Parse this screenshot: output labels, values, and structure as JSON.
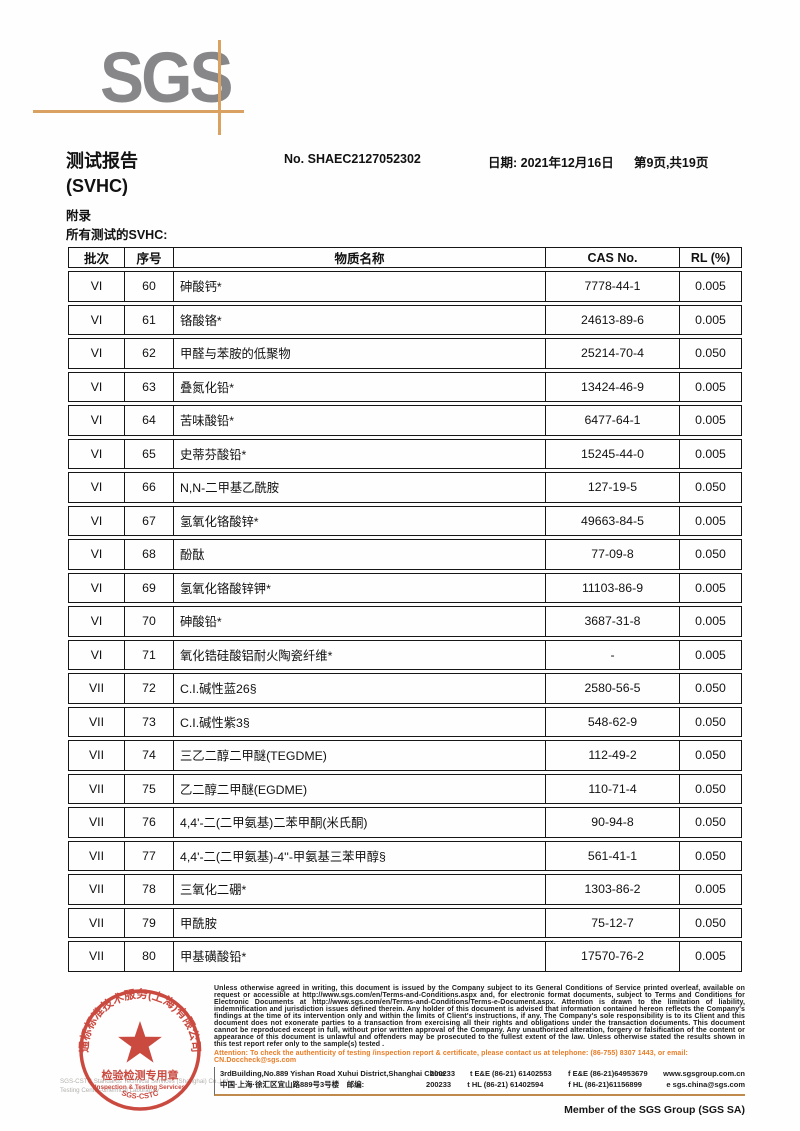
{
  "logo": {
    "text": "SGS"
  },
  "header": {
    "title_line1": "测试报告",
    "title_line2": "(SVHC)",
    "report_no": "No. SHAEC2127052302",
    "date": "日期: 2021年12月16日",
    "pages": "第9页,共19页",
    "appendix": "附录",
    "subtitle": "所有测试的SVHC:"
  },
  "table": {
    "headers": [
      "批次",
      "序号",
      "物质名称",
      "CAS No.",
      "RL (%)"
    ],
    "rows": [
      {
        "batch": "VI",
        "no": "60",
        "name": "砷酸钙*",
        "cas": "7778-44-1",
        "rl": "0.005"
      },
      {
        "batch": "VI",
        "no": "61",
        "name": "铬酸铬*",
        "cas": "24613-89-6",
        "rl": "0.005"
      },
      {
        "batch": "VI",
        "no": "62",
        "name": "甲醛与苯胺的低聚物",
        "cas": "25214-70-4",
        "rl": "0.050"
      },
      {
        "batch": "VI",
        "no": "63",
        "name": "叠氮化铅*",
        "cas": "13424-46-9",
        "rl": "0.005"
      },
      {
        "batch": "VI",
        "no": "64",
        "name": "苦味酸铅*",
        "cas": "6477-64-1",
        "rl": "0.005"
      },
      {
        "batch": "VI",
        "no": "65",
        "name": "史蒂芬酸铅*",
        "cas": "15245-44-0",
        "rl": "0.005"
      },
      {
        "batch": "VI",
        "no": "66",
        "name": "N,N-二甲基乙酰胺",
        "cas": "127-19-5",
        "rl": "0.050"
      },
      {
        "batch": "VI",
        "no": "67",
        "name": "氢氧化铬酸锌*",
        "cas": "49663-84-5",
        "rl": "0.005"
      },
      {
        "batch": "VI",
        "no": "68",
        "name": "酚酞",
        "cas": "77-09-8",
        "rl": "0.050"
      },
      {
        "batch": "VI",
        "no": "69",
        "name": "氢氧化铬酸锌钾*",
        "cas": "11103-86-9",
        "rl": "0.005"
      },
      {
        "batch": "VI",
        "no": "70",
        "name": "砷酸铅*",
        "cas": "3687-31-8",
        "rl": "0.005"
      },
      {
        "batch": "VI",
        "no": "71",
        "name": "氧化锆硅酸铝耐火陶瓷纤维*",
        "cas": "-",
        "rl": "0.005"
      },
      {
        "batch": "VII",
        "no": "72",
        "name": "C.I.碱性蓝26§",
        "cas": "2580-56-5",
        "rl": "0.050"
      },
      {
        "batch": "VII",
        "no": "73",
        "name": "C.I.碱性紫3§",
        "cas": "548-62-9",
        "rl": "0.050"
      },
      {
        "batch": "VII",
        "no": "74",
        "name": "三乙二醇二甲醚(TEGDME)",
        "cas": "112-49-2",
        "rl": "0.050"
      },
      {
        "batch": "VII",
        "no": "75",
        "name": "乙二醇二甲醚(EGDME)",
        "cas": "110-71-4",
        "rl": "0.050"
      },
      {
        "batch": "VII",
        "no": "76",
        "name": "4,4'-二(二甲氨基)二苯甲酮(米氏酮)",
        "cas": "90-94-8",
        "rl": "0.050"
      },
      {
        "batch": "VII",
        "no": "77",
        "name": "4,4'-二(二甲氨基)-4''-甲氨基三苯甲醇§",
        "cas": "561-41-1",
        "rl": "0.050"
      },
      {
        "batch": "VII",
        "no": "78",
        "name": "三氧化二硼*",
        "cas": "1303-86-2",
        "rl": "0.005"
      },
      {
        "batch": "VII",
        "no": "79",
        "name": "甲酰胺",
        "cas": "75-12-7",
        "rl": "0.050"
      },
      {
        "batch": "VII",
        "no": "80",
        "name": "甲基磺酸铅*",
        "cas": "17570-76-2",
        "rl": "0.005"
      }
    ]
  },
  "stamp": {
    "arc_top": "通标标准技术服务(上海)有限公司",
    "center_line1": "检验检测专用章",
    "center_line2": "Inspection & Testing Services",
    "arc_bottom": "SGS-CSTC"
  },
  "footer": {
    "company_gray_line1": "SGS-CSTC Standards Technical Services (Shanghai) Co.,Ltd.",
    "company_gray_line2": "Testing Center-Chemical Laboratory",
    "legal_text": "Unless otherwise agreed in writing, this document is issued by the Company subject to its General Conditions of Service printed overleaf, available on request or accessible at http://www.sgs.com/en/Terms-and-Conditions.aspx and, for electronic format documents, subject to Terms and Conditions for Electronic Documents at http://www.sgs.com/en/Terms-and-Conditions/Terms-e-Document.aspx. Attention is drawn to the limitation of liability, indemnification and jurisdiction issues defined therein. Any holder of this document is advised that information contained hereon reflects the Company's findings at the time of its intervention only and within the limits of Client's instructions, if any. The Company's sole responsibility is to its Client and this document does not exonerate parties to a transaction from exercising all their rights and obligations under the transaction documents. This document cannot be reproduced except in full, without prior written approval of the Company. Any unauthorized alteration, forgery or falsification of the content or appearance of this document is unlawful and offenders may be prosecuted to the fullest extent of the law. Unless otherwise stated the results shown in this test report refer only to the sample(s) tested .",
    "attention_text": "Attention: To check the authenticity of testing /inspection report & certificate, please contact us at telephone: (86-755) 8307 1443, or email: CN.Doccheck@sgs.com",
    "address_rows": [
      {
        "addr": "3rdBuilding,No.889 Yishan Road Xuhui District,Shanghai China",
        "post": "200233",
        "tel": "t E&E (86-21) 61402553",
        "fax": "f E&E (86-21)64953679",
        "net": "www.sgsgroup.com.cn"
      },
      {
        "addr": "中国·上海·徐汇区宜山路889号3号楼　邮编:",
        "post": "200233",
        "tel": "t HL (86-21) 61402594",
        "fax": "f HL (86-21)61156899",
        "net": "e  sgs.china@sgs.com"
      }
    ],
    "member_text": "Member of the SGS Group (SGS SA)"
  },
  "colors": {
    "logo_gray": "#87878a",
    "line_tan": "#d9a263",
    "footer_line_tan": "#bf8a4b",
    "stamp_red": "#c5372c",
    "attention_orange": "#e87c25"
  }
}
